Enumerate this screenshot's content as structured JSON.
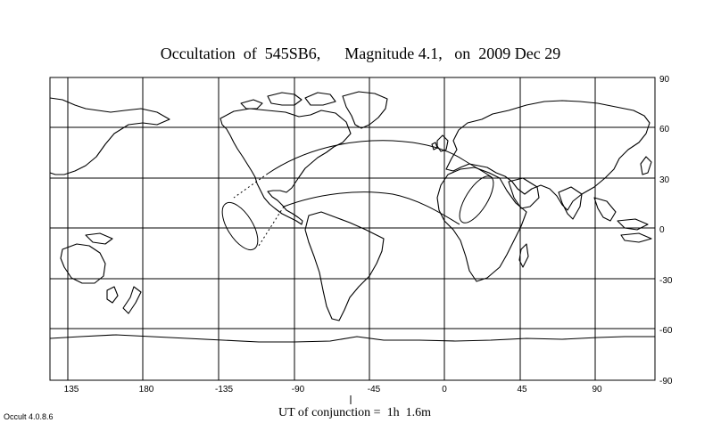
{
  "title": "Occultation  of  545SB6,      Magnitude 4.1,   on  2009 Dec 29",
  "footer": {
    "utc_label": "UT of conjunction =  1h  1.6m",
    "version": "Occult 4.0.8.6"
  },
  "axes": {
    "longitude_labels": [
      {
        "value": 135,
        "text": "135"
      },
      {
        "value": 180,
        "text": "180"
      },
      {
        "value": -135,
        "text": "-135"
      },
      {
        "value": -90,
        "text": "-90"
      },
      {
        "value": -45,
        "text": "-45"
      },
      {
        "value": 0,
        "text": "0"
      },
      {
        "value": 45,
        "text": "45"
      },
      {
        "value": 90,
        "text": "90"
      }
    ],
    "latitude_labels": [
      {
        "value": 90,
        "text": "90"
      },
      {
        "value": 60,
        "text": "60"
      },
      {
        "value": 30,
        "text": "30"
      },
      {
        "value": 0,
        "text": "0"
      },
      {
        "value": -30,
        "text": "-30"
      },
      {
        "value": -60,
        "text": "-60"
      },
      {
        "value": -90,
        "text": "-90"
      }
    ]
  },
  "colors": {
    "ink": "#000000",
    "background": "#ffffff"
  }
}
